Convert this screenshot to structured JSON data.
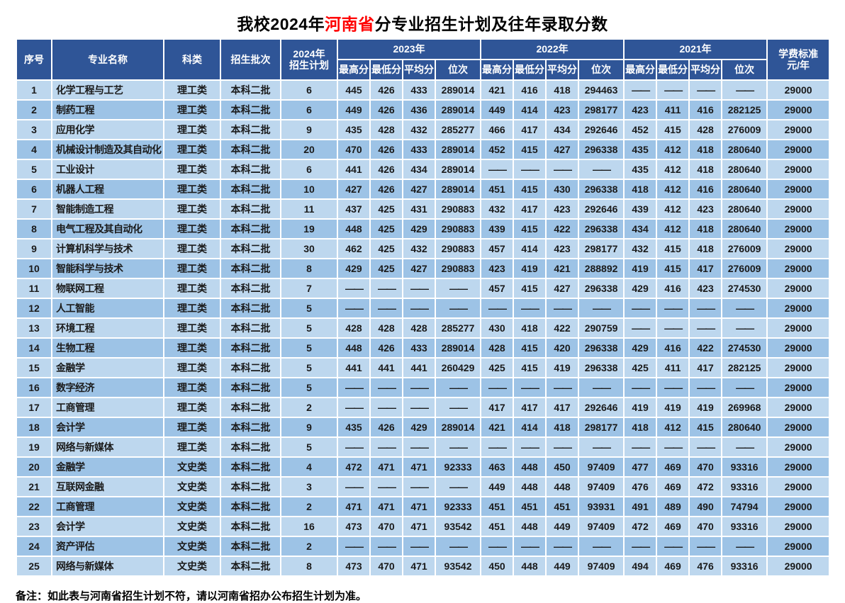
{
  "title": {
    "prefix": "我校2024年",
    "highlight": "河南省",
    "suffix": "分专业招生计划及往年录取分数"
  },
  "colors": {
    "header_bg": "#2F5597",
    "header_text": "#FFFFFF",
    "row_light": "#BDD7EE",
    "row_dark": "#9DC3E6",
    "title_highlight": "#FF0000"
  },
  "table": {
    "headers": {
      "no": "序号",
      "major": "专业名称",
      "category": "科类",
      "batch": "招生批次",
      "plan_line1": "2024年",
      "plan_line2": "招生计划",
      "year_groups": [
        "2023年",
        "2022年",
        "2021年"
      ],
      "sub_cols": [
        "最高分",
        "最低分",
        "平均分",
        "位次"
      ],
      "fee_line1": "学费标准",
      "fee_line2": "元/年"
    },
    "rows": [
      {
        "no": "1",
        "major": "化学工程与工艺",
        "category": "理工类",
        "batch": "本科二批",
        "plan": "6",
        "scores": [
          "445",
          "426",
          "433",
          "289014",
          "421",
          "416",
          "418",
          "294463",
          "——",
          "——",
          "——",
          "——"
        ],
        "fee": "29000"
      },
      {
        "no": "2",
        "major": "制药工程",
        "category": "理工类",
        "batch": "本科二批",
        "plan": "6",
        "scores": [
          "449",
          "426",
          "436",
          "289014",
          "449",
          "414",
          "423",
          "298177",
          "423",
          "411",
          "416",
          "282125"
        ],
        "fee": "29000"
      },
      {
        "no": "3",
        "major": "应用化学",
        "category": "理工类",
        "batch": "本科二批",
        "plan": "9",
        "scores": [
          "435",
          "428",
          "432",
          "285277",
          "466",
          "417",
          "434",
          "292646",
          "452",
          "415",
          "428",
          "276009"
        ],
        "fee": "29000"
      },
      {
        "no": "4",
        "major": "机械设计制造及其自动化",
        "category": "理工类",
        "batch": "本科二批",
        "plan": "20",
        "scores": [
          "470",
          "426",
          "433",
          "289014",
          "452",
          "415",
          "427",
          "296338",
          "435",
          "412",
          "418",
          "280640"
        ],
        "fee": "29000"
      },
      {
        "no": "5",
        "major": "工业设计",
        "category": "理工类",
        "batch": "本科二批",
        "plan": "6",
        "scores": [
          "441",
          "426",
          "434",
          "289014",
          "——",
          "——",
          "——",
          "——",
          "435",
          "412",
          "418",
          "280640"
        ],
        "fee": "29000"
      },
      {
        "no": "6",
        "major": "机器人工程",
        "category": "理工类",
        "batch": "本科二批",
        "plan": "10",
        "scores": [
          "427",
          "426",
          "427",
          "289014",
          "451",
          "415",
          "430",
          "296338",
          "418",
          "412",
          "416",
          "280640"
        ],
        "fee": "29000"
      },
      {
        "no": "7",
        "major": "智能制造工程",
        "category": "理工类",
        "batch": "本科二批",
        "plan": "11",
        "scores": [
          "437",
          "425",
          "431",
          "290883",
          "432",
          "417",
          "423",
          "292646",
          "439",
          "412",
          "423",
          "280640"
        ],
        "fee": "29000"
      },
      {
        "no": "8",
        "major": "电气工程及其自动化",
        "category": "理工类",
        "batch": "本科二批",
        "plan": "19",
        "scores": [
          "448",
          "425",
          "429",
          "290883",
          "439",
          "415",
          "422",
          "296338",
          "434",
          "412",
          "418",
          "280640"
        ],
        "fee": "29000"
      },
      {
        "no": "9",
        "major": "计算机科学与技术",
        "category": "理工类",
        "batch": "本科二批",
        "plan": "30",
        "scores": [
          "462",
          "425",
          "432",
          "290883",
          "457",
          "414",
          "423",
          "298177",
          "432",
          "415",
          "418",
          "276009"
        ],
        "fee": "29000"
      },
      {
        "no": "10",
        "major": "智能科学与技术",
        "category": "理工类",
        "batch": "本科二批",
        "plan": "8",
        "scores": [
          "429",
          "425",
          "427",
          "290883",
          "423",
          "419",
          "421",
          "288892",
          "419",
          "415",
          "417",
          "276009"
        ],
        "fee": "29000"
      },
      {
        "no": "11",
        "major": "物联网工程",
        "category": "理工类",
        "batch": "本科二批",
        "plan": "7",
        "scores": [
          "——",
          "——",
          "——",
          "——",
          "457",
          "415",
          "427",
          "296338",
          "429",
          "416",
          "423",
          "274530"
        ],
        "fee": "29000"
      },
      {
        "no": "12",
        "major": "人工智能",
        "category": "理工类",
        "batch": "本科二批",
        "plan": "5",
        "scores": [
          "——",
          "——",
          "——",
          "——",
          "——",
          "——",
          "——",
          "——",
          "——",
          "——",
          "——",
          "——"
        ],
        "fee": "29000"
      },
      {
        "no": "13",
        "major": "环境工程",
        "category": "理工类",
        "batch": "本科二批",
        "plan": "5",
        "scores": [
          "428",
          "428",
          "428",
          "285277",
          "430",
          "418",
          "422",
          "290759",
          "——",
          "——",
          "——",
          "——"
        ],
        "fee": "29000"
      },
      {
        "no": "14",
        "major": "生物工程",
        "category": "理工类",
        "batch": "本科二批",
        "plan": "5",
        "scores": [
          "448",
          "426",
          "433",
          "289014",
          "428",
          "415",
          "420",
          "296338",
          "429",
          "416",
          "422",
          "274530"
        ],
        "fee": "29000"
      },
      {
        "no": "15",
        "major": "金融学",
        "category": "理工类",
        "batch": "本科二批",
        "plan": "5",
        "scores": [
          "441",
          "441",
          "441",
          "260429",
          "425",
          "415",
          "419",
          "296338",
          "425",
          "411",
          "417",
          "282125"
        ],
        "fee": "29000"
      },
      {
        "no": "16",
        "major": "数字经济",
        "category": "理工类",
        "batch": "本科二批",
        "plan": "5",
        "scores": [
          "——",
          "——",
          "——",
          "——",
          "——",
          "——",
          "——",
          "——",
          "——",
          "——",
          "——",
          "——"
        ],
        "fee": "29000"
      },
      {
        "no": "17",
        "major": "工商管理",
        "category": "理工类",
        "batch": "本科二批",
        "plan": "2",
        "scores": [
          "——",
          "——",
          "——",
          "——",
          "417",
          "417",
          "417",
          "292646",
          "419",
          "419",
          "419",
          "269968"
        ],
        "fee": "29000"
      },
      {
        "no": "18",
        "major": "会计学",
        "category": "理工类",
        "batch": "本科二批",
        "plan": "9",
        "scores": [
          "435",
          "426",
          "429",
          "289014",
          "421",
          "414",
          "418",
          "298177",
          "418",
          "412",
          "415",
          "280640"
        ],
        "fee": "29000"
      },
      {
        "no": "19",
        "major": "网络与新媒体",
        "category": "理工类",
        "batch": "本科二批",
        "plan": "5",
        "scores": [
          "——",
          "——",
          "——",
          "——",
          "——",
          "——",
          "——",
          "——",
          "——",
          "——",
          "——",
          "——"
        ],
        "fee": "29000"
      },
      {
        "no": "20",
        "major": "金融学",
        "category": "文史类",
        "batch": "本科二批",
        "plan": "4",
        "scores": [
          "472",
          "471",
          "471",
          "92333",
          "463",
          "448",
          "450",
          "97409",
          "477",
          "469",
          "470",
          "93316"
        ],
        "fee": "29000"
      },
      {
        "no": "21",
        "major": "互联网金融",
        "category": "文史类",
        "batch": "本科二批",
        "plan": "3",
        "scores": [
          "——",
          "——",
          "——",
          "——",
          "449",
          "448",
          "448",
          "97409",
          "476",
          "469",
          "472",
          "93316"
        ],
        "fee": "29000"
      },
      {
        "no": "22",
        "major": "工商管理",
        "category": "文史类",
        "batch": "本科二批",
        "plan": "2",
        "scores": [
          "471",
          "471",
          "471",
          "92333",
          "451",
          "451",
          "451",
          "93931",
          "491",
          "489",
          "490",
          "74794"
        ],
        "fee": "29000"
      },
      {
        "no": "23",
        "major": "会计学",
        "category": "文史类",
        "batch": "本科二批",
        "plan": "16",
        "scores": [
          "473",
          "470",
          "471",
          "93542",
          "451",
          "448",
          "449",
          "97409",
          "472",
          "469",
          "470",
          "93316"
        ],
        "fee": "29000"
      },
      {
        "no": "24",
        "major": "资产评估",
        "category": "文史类",
        "batch": "本科二批",
        "plan": "2",
        "scores": [
          "——",
          "——",
          "——",
          "——",
          "——",
          "——",
          "——",
          "——",
          "——",
          "——",
          "——",
          "——"
        ],
        "fee": "29000"
      },
      {
        "no": "25",
        "major": "网络与新媒体",
        "category": "文史类",
        "batch": "本科二批",
        "plan": "8",
        "scores": [
          "473",
          "470",
          "471",
          "93542",
          "450",
          "448",
          "449",
          "97409",
          "494",
          "469",
          "476",
          "93316"
        ],
        "fee": "29000"
      }
    ]
  },
  "note": "备注：如此表与河南省招生计划不符，请以河南省招办公布招生计划为准。"
}
